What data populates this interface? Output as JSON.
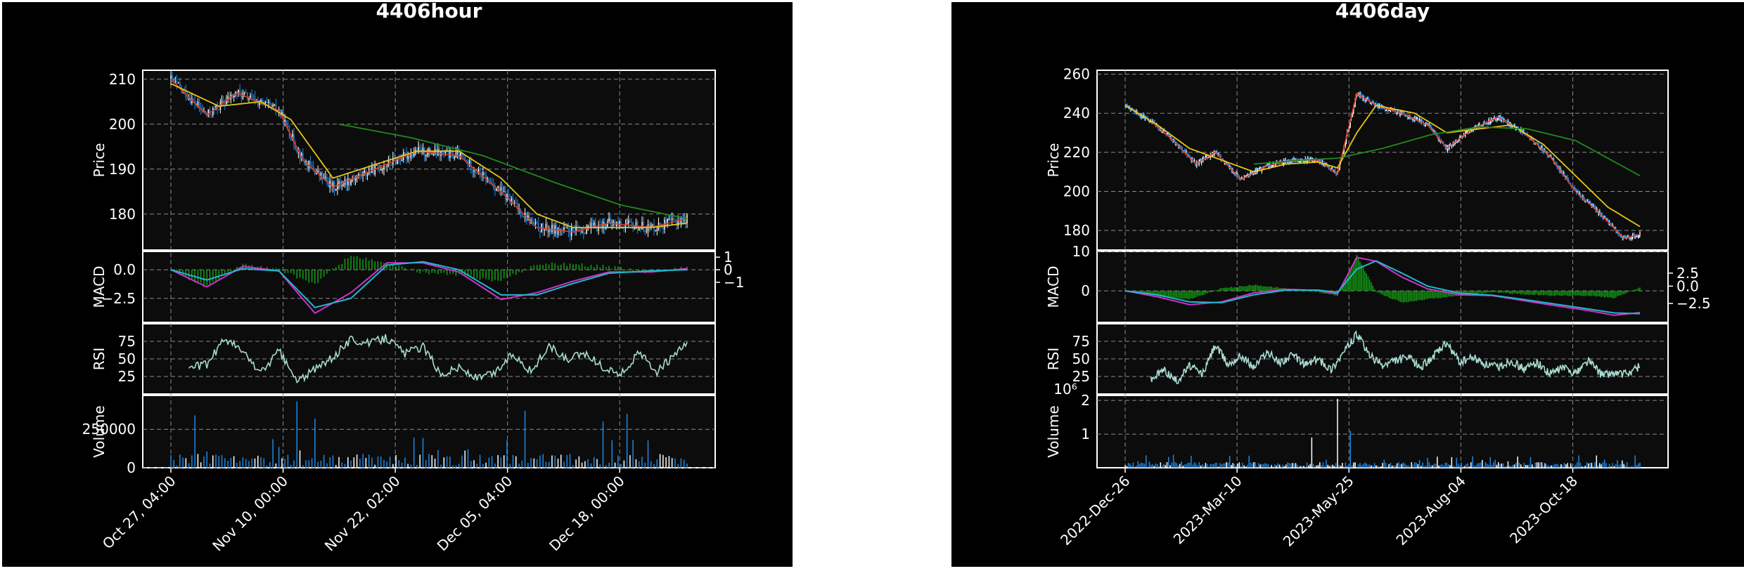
{
  "chart_data": [
    {
      "type": "candlestick",
      "title": "4406hour",
      "price_panel": {
        "ylabel": "Price",
        "yticks": [
          180,
          190,
          200,
          210
        ],
        "ylim": [
          172,
          212
        ]
      },
      "macd_panel": {
        "ylabel": "MACD",
        "yticks_left": [
          "0.0",
          "−2.5"
        ],
        "yticks_right": [
          "1",
          "0",
          "−1"
        ]
      },
      "rsi_panel": {
        "ylabel": "RSI",
        "yticks": [
          25,
          50,
          75
        ],
        "ylim": [
          0,
          100
        ]
      },
      "volume_panel": {
        "ylabel": "Volume",
        "yticks": [
          "0",
          "250000"
        ]
      },
      "xticks": [
        "Oct 27, 04:00",
        "Nov 10, 00:00",
        "Nov 22, 02:00",
        "Dec 05, 04:00",
        "Dec 18, 00:00"
      ],
      "close_anchors": [
        [
          0,
          210
        ],
        [
          6,
          202
        ],
        [
          11,
          207
        ],
        [
          18,
          203
        ],
        [
          22,
          192
        ],
        [
          27,
          186
        ],
        [
          34,
          190
        ],
        [
          41,
          194
        ],
        [
          48,
          193
        ],
        [
          55,
          185
        ],
        [
          61,
          177
        ],
        [
          67,
          176
        ],
        [
          73,
          178
        ],
        [
          80,
          177
        ],
        [
          86,
          179
        ]
      ],
      "ma_yellow": [
        [
          0,
          209
        ],
        [
          8,
          204
        ],
        [
          15,
          205
        ],
        [
          20,
          201
        ],
        [
          27,
          188
        ],
        [
          34,
          191
        ],
        [
          41,
          194
        ],
        [
          48,
          194
        ],
        [
          55,
          188
        ],
        [
          61,
          180
        ],
        [
          67,
          177
        ],
        [
          73,
          177
        ],
        [
          80,
          177
        ],
        [
          86,
          178
        ]
      ],
      "ma_green": [
        [
          28,
          200
        ],
        [
          40,
          197
        ],
        [
          52,
          193
        ],
        [
          64,
          187
        ],
        [
          75,
          182
        ],
        [
          86,
          179
        ]
      ],
      "macd_line": [
        [
          0,
          0.0
        ],
        [
          6,
          -1.5
        ],
        [
          12,
          0.3
        ],
        [
          18,
          -0.1
        ],
        [
          24,
          -3.8
        ],
        [
          30,
          -2.0
        ],
        [
          36,
          0.6
        ],
        [
          42,
          0.6
        ],
        [
          48,
          -0.2
        ],
        [
          55,
          -2.6
        ],
        [
          61,
          -2.0
        ],
        [
          67,
          -1.0
        ],
        [
          73,
          -0.2
        ],
        [
          80,
          -0.2
        ],
        [
          86,
          0.1
        ]
      ],
      "signal_line": [
        [
          0,
          0.0
        ],
        [
          6,
          -0.9
        ],
        [
          12,
          0.1
        ],
        [
          18,
          -0.1
        ],
        [
          24,
          -3.3
        ],
        [
          30,
          -2.5
        ],
        [
          36,
          0.4
        ],
        [
          42,
          0.7
        ],
        [
          48,
          0.0
        ],
        [
          55,
          -2.2
        ],
        [
          61,
          -2.2
        ],
        [
          67,
          -1.2
        ],
        [
          73,
          -0.3
        ],
        [
          80,
          -0.1
        ],
        [
          86,
          0.0
        ]
      ],
      "rsi": [
        [
          3,
          38
        ],
        [
          6,
          42
        ],
        [
          9,
          80
        ],
        [
          12,
          60
        ],
        [
          15,
          30
        ],
        [
          18,
          62
        ],
        [
          21,
          18
        ],
        [
          24,
          35
        ],
        [
          27,
          52
        ],
        [
          30,
          78
        ],
        [
          33,
          72
        ],
        [
          36,
          80
        ],
        [
          39,
          58
        ],
        [
          42,
          68
        ],
        [
          45,
          28
        ],
        [
          48,
          38
        ],
        [
          51,
          22
        ],
        [
          54,
          30
        ],
        [
          57,
          58
        ],
        [
          60,
          32
        ],
        [
          63,
          68
        ],
        [
          66,
          48
        ],
        [
          69,
          58
        ],
        [
          72,
          38
        ],
        [
          75,
          28
        ],
        [
          78,
          58
        ],
        [
          81,
          32
        ],
        [
          84,
          55
        ],
        [
          86,
          72
        ]
      ],
      "volume_spikes": [
        [
          4,
          340000
        ],
        [
          21,
          430000
        ],
        [
          24,
          320000
        ],
        [
          59,
          370000
        ],
        [
          72,
          300000
        ],
        [
          76,
          350000
        ]
      ]
    },
    {
      "type": "candlestick",
      "title": "4406day",
      "price_panel": {
        "ylabel": "Price",
        "yticks": [
          180,
          200,
          220,
          240,
          260
        ],
        "ylim": [
          170,
          262
        ]
      },
      "macd_panel": {
        "ylabel": "MACD",
        "yticks_left": [
          "10",
          "0"
        ],
        "yticks_right": [
          "2.5",
          "0.0",
          "−2.5"
        ]
      },
      "rsi_panel": {
        "ylabel": "RSI",
        "yticks": [
          25,
          50,
          75
        ],
        "ylim": [
          0,
          100
        ]
      },
      "volume_panel": {
        "ylabel": "Volume",
        "exponent": "10⁶",
        "yticks": [
          "1",
          "2"
        ]
      },
      "xticks": [
        "2022-Dec-26",
        "2023-Mar-10",
        "2023-May-25",
        "2023-Aug-04",
        "2023-Oct-18"
      ],
      "close_anchors": [
        [
          0,
          244
        ],
        [
          8,
          236
        ],
        [
          15,
          226
        ],
        [
          22,
          214
        ],
        [
          28,
          220
        ],
        [
          36,
          206
        ],
        [
          44,
          213
        ],
        [
          52,
          216
        ],
        [
          60,
          216
        ],
        [
          66,
          209
        ],
        [
          72,
          250
        ],
        [
          78,
          244
        ],
        [
          86,
          240
        ],
        [
          94,
          234
        ],
        [
          100,
          222
        ],
        [
          108,
          232
        ],
        [
          116,
          238
        ],
        [
          124,
          230
        ],
        [
          132,
          218
        ],
        [
          140,
          200
        ],
        [
          148,
          188
        ],
        [
          155,
          176
        ],
        [
          160,
          178
        ]
      ],
      "ma_yellow": [
        [
          0,
          244
        ],
        [
          10,
          234
        ],
        [
          20,
          222
        ],
        [
          30,
          216
        ],
        [
          40,
          210
        ],
        [
          50,
          214
        ],
        [
          60,
          215
        ],
        [
          66,
          212
        ],
        [
          72,
          230
        ],
        [
          78,
          244
        ],
        [
          90,
          240
        ],
        [
          100,
          230
        ],
        [
          110,
          232
        ],
        [
          120,
          234
        ],
        [
          130,
          224
        ],
        [
          140,
          208
        ],
        [
          150,
          192
        ],
        [
          160,
          182
        ]
      ],
      "ma_green": [
        [
          40,
          214
        ],
        [
          55,
          216
        ],
        [
          66,
          217
        ],
        [
          80,
          222
        ],
        [
          95,
          229
        ],
        [
          110,
          233
        ],
        [
          125,
          232
        ],
        [
          140,
          226
        ],
        [
          160,
          208
        ]
      ],
      "macd_line": [
        [
          0,
          0.0
        ],
        [
          10,
          -1.5
        ],
        [
          20,
          -3.5
        ],
        [
          30,
          -2.8
        ],
        [
          40,
          -0.5
        ],
        [
          50,
          0.4
        ],
        [
          60,
          0.1
        ],
        [
          66,
          -0.8
        ],
        [
          72,
          8.5
        ],
        [
          78,
          7.5
        ],
        [
          86,
          3.5
        ],
        [
          94,
          0.5
        ],
        [
          104,
          -1.0
        ],
        [
          114,
          -1.2
        ],
        [
          124,
          -2.5
        ],
        [
          134,
          -3.8
        ],
        [
          144,
          -5.0
        ],
        [
          152,
          -6.2
        ],
        [
          160,
          -5.5
        ]
      ],
      "signal_line": [
        [
          0,
          0.0
        ],
        [
          10,
          -1.0
        ],
        [
          20,
          -2.8
        ],
        [
          30,
          -3.0
        ],
        [
          40,
          -1.0
        ],
        [
          50,
          0.2
        ],
        [
          60,
          0.2
        ],
        [
          66,
          -0.4
        ],
        [
          72,
          5.5
        ],
        [
          78,
          7.6
        ],
        [
          86,
          4.5
        ],
        [
          94,
          1.2
        ],
        [
          104,
          -0.6
        ],
        [
          114,
          -1.1
        ],
        [
          124,
          -2.2
        ],
        [
          134,
          -3.4
        ],
        [
          144,
          -4.6
        ],
        [
          152,
          -5.6
        ],
        [
          160,
          -5.8
        ]
      ],
      "rsi": [
        [
          8,
          20
        ],
        [
          12,
          35
        ],
        [
          16,
          18
        ],
        [
          20,
          40
        ],
        [
          24,
          28
        ],
        [
          28,
          70
        ],
        [
          32,
          42
        ],
        [
          36,
          55
        ],
        [
          40,
          38
        ],
        [
          44,
          60
        ],
        [
          48,
          45
        ],
        [
          52,
          55
        ],
        [
          56,
          42
        ],
        [
          60,
          50
        ],
        [
          64,
          35
        ],
        [
          68,
          60
        ],
        [
          72,
          85
        ],
        [
          76,
          55
        ],
        [
          80,
          40
        ],
        [
          84,
          48
        ],
        [
          88,
          52
        ],
        [
          92,
          38
        ],
        [
          96,
          55
        ],
        [
          100,
          72
        ],
        [
          104,
          45
        ],
        [
          108,
          52
        ],
        [
          112,
          42
        ],
        [
          116,
          38
        ],
        [
          120,
          48
        ],
        [
          124,
          35
        ],
        [
          128,
          45
        ],
        [
          132,
          28
        ],
        [
          136,
          38
        ],
        [
          140,
          30
        ],
        [
          144,
          48
        ],
        [
          148,
          28
        ],
        [
          152,
          30
        ],
        [
          156,
          28
        ],
        [
          160,
          40
        ]
      ],
      "volume_spikes": [
        [
          58,
          900000
        ],
        [
          66,
          2050000
        ],
        [
          70,
          1100000
        ]
      ]
    }
  ],
  "colors": {
    "background": "#000000",
    "plot_bg": "#0c0c0c",
    "up": "#ffffff",
    "down": "#1e88e5",
    "ma_red": "#e03a1e",
    "ma_yellow": "#e6c619",
    "ma_green": "#1f8a1f",
    "macd": "#cc33cc",
    "signal": "#22b8cf",
    "hist": "#13a313",
    "rsi": "#a8dcd1",
    "grid": "#8a8a8a"
  }
}
